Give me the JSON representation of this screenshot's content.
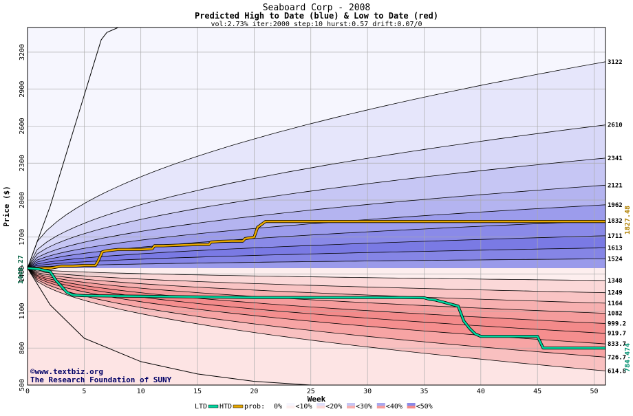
{
  "chart_data": {
    "type": "area",
    "title": "Seaboard Corp - 2008",
    "subtitle": "Predicted High to Date (blue) &  Low to Date (red)",
    "params": "vol:2.73% iter:2000 step:10 hurst:0.57 drift:0.07/0",
    "xlabel": "Week",
    "ylabel": "Price ($)",
    "xlim": [
      0,
      51
    ],
    "ylim": [
      500,
      3400
    ],
    "x_ticks": [
      0,
      5,
      10,
      15,
      20,
      25,
      30,
      35,
      40,
      45,
      50
    ],
    "x_tick_labels": [
      "0",
      "5",
      "10",
      "15",
      "20",
      "25",
      "30",
      "35",
      "40",
      "45",
      "50"
    ],
    "y_ticks": [
      500,
      800,
      1100,
      1400,
      1700,
      2000,
      2300,
      2600,
      2900,
      3200
    ],
    "y_tick_labels": [
      "500",
      "800",
      "1100",
      "1400",
      "1700",
      "2000",
      "2300",
      "2600",
      "2900",
      "3200"
    ],
    "start_price": 1448,
    "start_label": "1448.27",
    "high_quantiles": [
      {
        "label": "3122",
        "end": 3122
      },
      {
        "label": "2610",
        "end": 2610
      },
      {
        "label": "2341",
        "end": 2341
      },
      {
        "label": "2121",
        "end": 2121
      },
      {
        "label": "1962",
        "end": 1962
      },
      {
        "label": "1832",
        "end": 1832
      },
      {
        "label": "1711",
        "end": 1711
      },
      {
        "label": "1613",
        "end": 1613
      },
      {
        "label": "1524",
        "end": 1524
      }
    ],
    "low_quantiles": [
      {
        "label": "1348",
        "end": 1348
      },
      {
        "label": "1249",
        "end": 1249
      },
      {
        "label": "1164",
        "end": 1164
      },
      {
        "label": "1082",
        "end": 1082
      },
      {
        "label": "999.2",
        "end": 999.2
      },
      {
        "label": "919.7",
        "end": 919.7
      },
      {
        "label": "833.7",
        "end": 833.7
      },
      {
        "label": "726.7",
        "end": 726.7
      },
      {
        "label": "614.8",
        "end": 614.8
      }
    ],
    "outer_high_curve": {
      "x": [
        0,
        1,
        2,
        3,
        4,
        5,
        6,
        6.5,
        7,
        8
      ],
      "y": [
        1448,
        1700,
        1950,
        2250,
        2550,
        2850,
        3150,
        3300,
        3360,
        3400
      ]
    },
    "outer_low_curve": {
      "x": [
        0,
        2,
        5,
        10,
        15,
        20,
        25
      ],
      "y": [
        1448,
        1150,
        880,
        690,
        590,
        530,
        500
      ]
    },
    "actual_high": {
      "name": "HTD",
      "color": "#e8a800",
      "x": [
        0,
        2,
        3,
        4,
        5,
        6,
        6.2,
        6.6,
        7,
        8,
        10,
        11,
        11.2,
        12,
        15,
        16,
        16.2,
        17,
        18,
        19,
        19.2,
        20,
        20.3,
        20.6,
        21,
        25,
        30,
        35,
        40,
        45,
        51
      ],
      "y": [
        1448,
        1448,
        1465,
        1465,
        1470,
        1470,
        1500,
        1580,
        1590,
        1600,
        1600,
        1605,
        1630,
        1630,
        1640,
        1640,
        1660,
        1665,
        1668,
        1668,
        1688,
        1700,
        1780,
        1800,
        1827,
        1827,
        1827,
        1827,
        1827,
        1827,
        1827
      ]
    },
    "actual_low": {
      "name": "LTD",
      "color": "#00d8a0",
      "x": [
        0,
        1,
        2,
        2.5,
        3,
        3.5,
        4,
        5,
        10,
        15,
        20,
        25,
        30,
        33,
        35,
        35.5,
        36,
        37,
        38,
        38.5,
        39,
        39.5,
        40,
        42,
        45,
        45.5,
        51
      ],
      "y": [
        1448,
        1440,
        1420,
        1350,
        1300,
        1250,
        1230,
        1225,
        1220,
        1215,
        1210,
        1210,
        1210,
        1210,
        1208,
        1195,
        1190,
        1165,
        1140,
        1020,
        960,
        915,
        895,
        895,
        895,
        800,
        800
      ]
    },
    "actual_high_label": "1827.48",
    "actual_low_label": "784.474",
    "band_colors_high": [
      "#f6f6fe",
      "#e6e6fb",
      "#d8d8f8",
      "#c6c6f4",
      "#b4b4f0",
      "#9c9cec",
      "#8a8ae8",
      "#7a7ae4",
      "#8585e6",
      "#9a9aea"
    ],
    "band_colors_low": [
      "#fdeeee",
      "#fbd8d8",
      "#f9c4c4",
      "#f7b0b0",
      "#f59c9c",
      "#f38a8a",
      "#f58e8e",
      "#f7a4a4",
      "#f9c0c0",
      "#fde4e4"
    ],
    "legend": {
      "ltd": "LTD",
      "htd": "HTD",
      "prob": "prob:",
      "items": [
        "0%",
        "<10%",
        "<20%",
        "<30%",
        "<40%",
        "<50%"
      ],
      "ltd_color": "#00d8a0",
      "htd_color": "#e8a800"
    },
    "credit_line1": "©www.textbiz.org",
    "credit_line2": "The Research Foundation of SUNY"
  }
}
